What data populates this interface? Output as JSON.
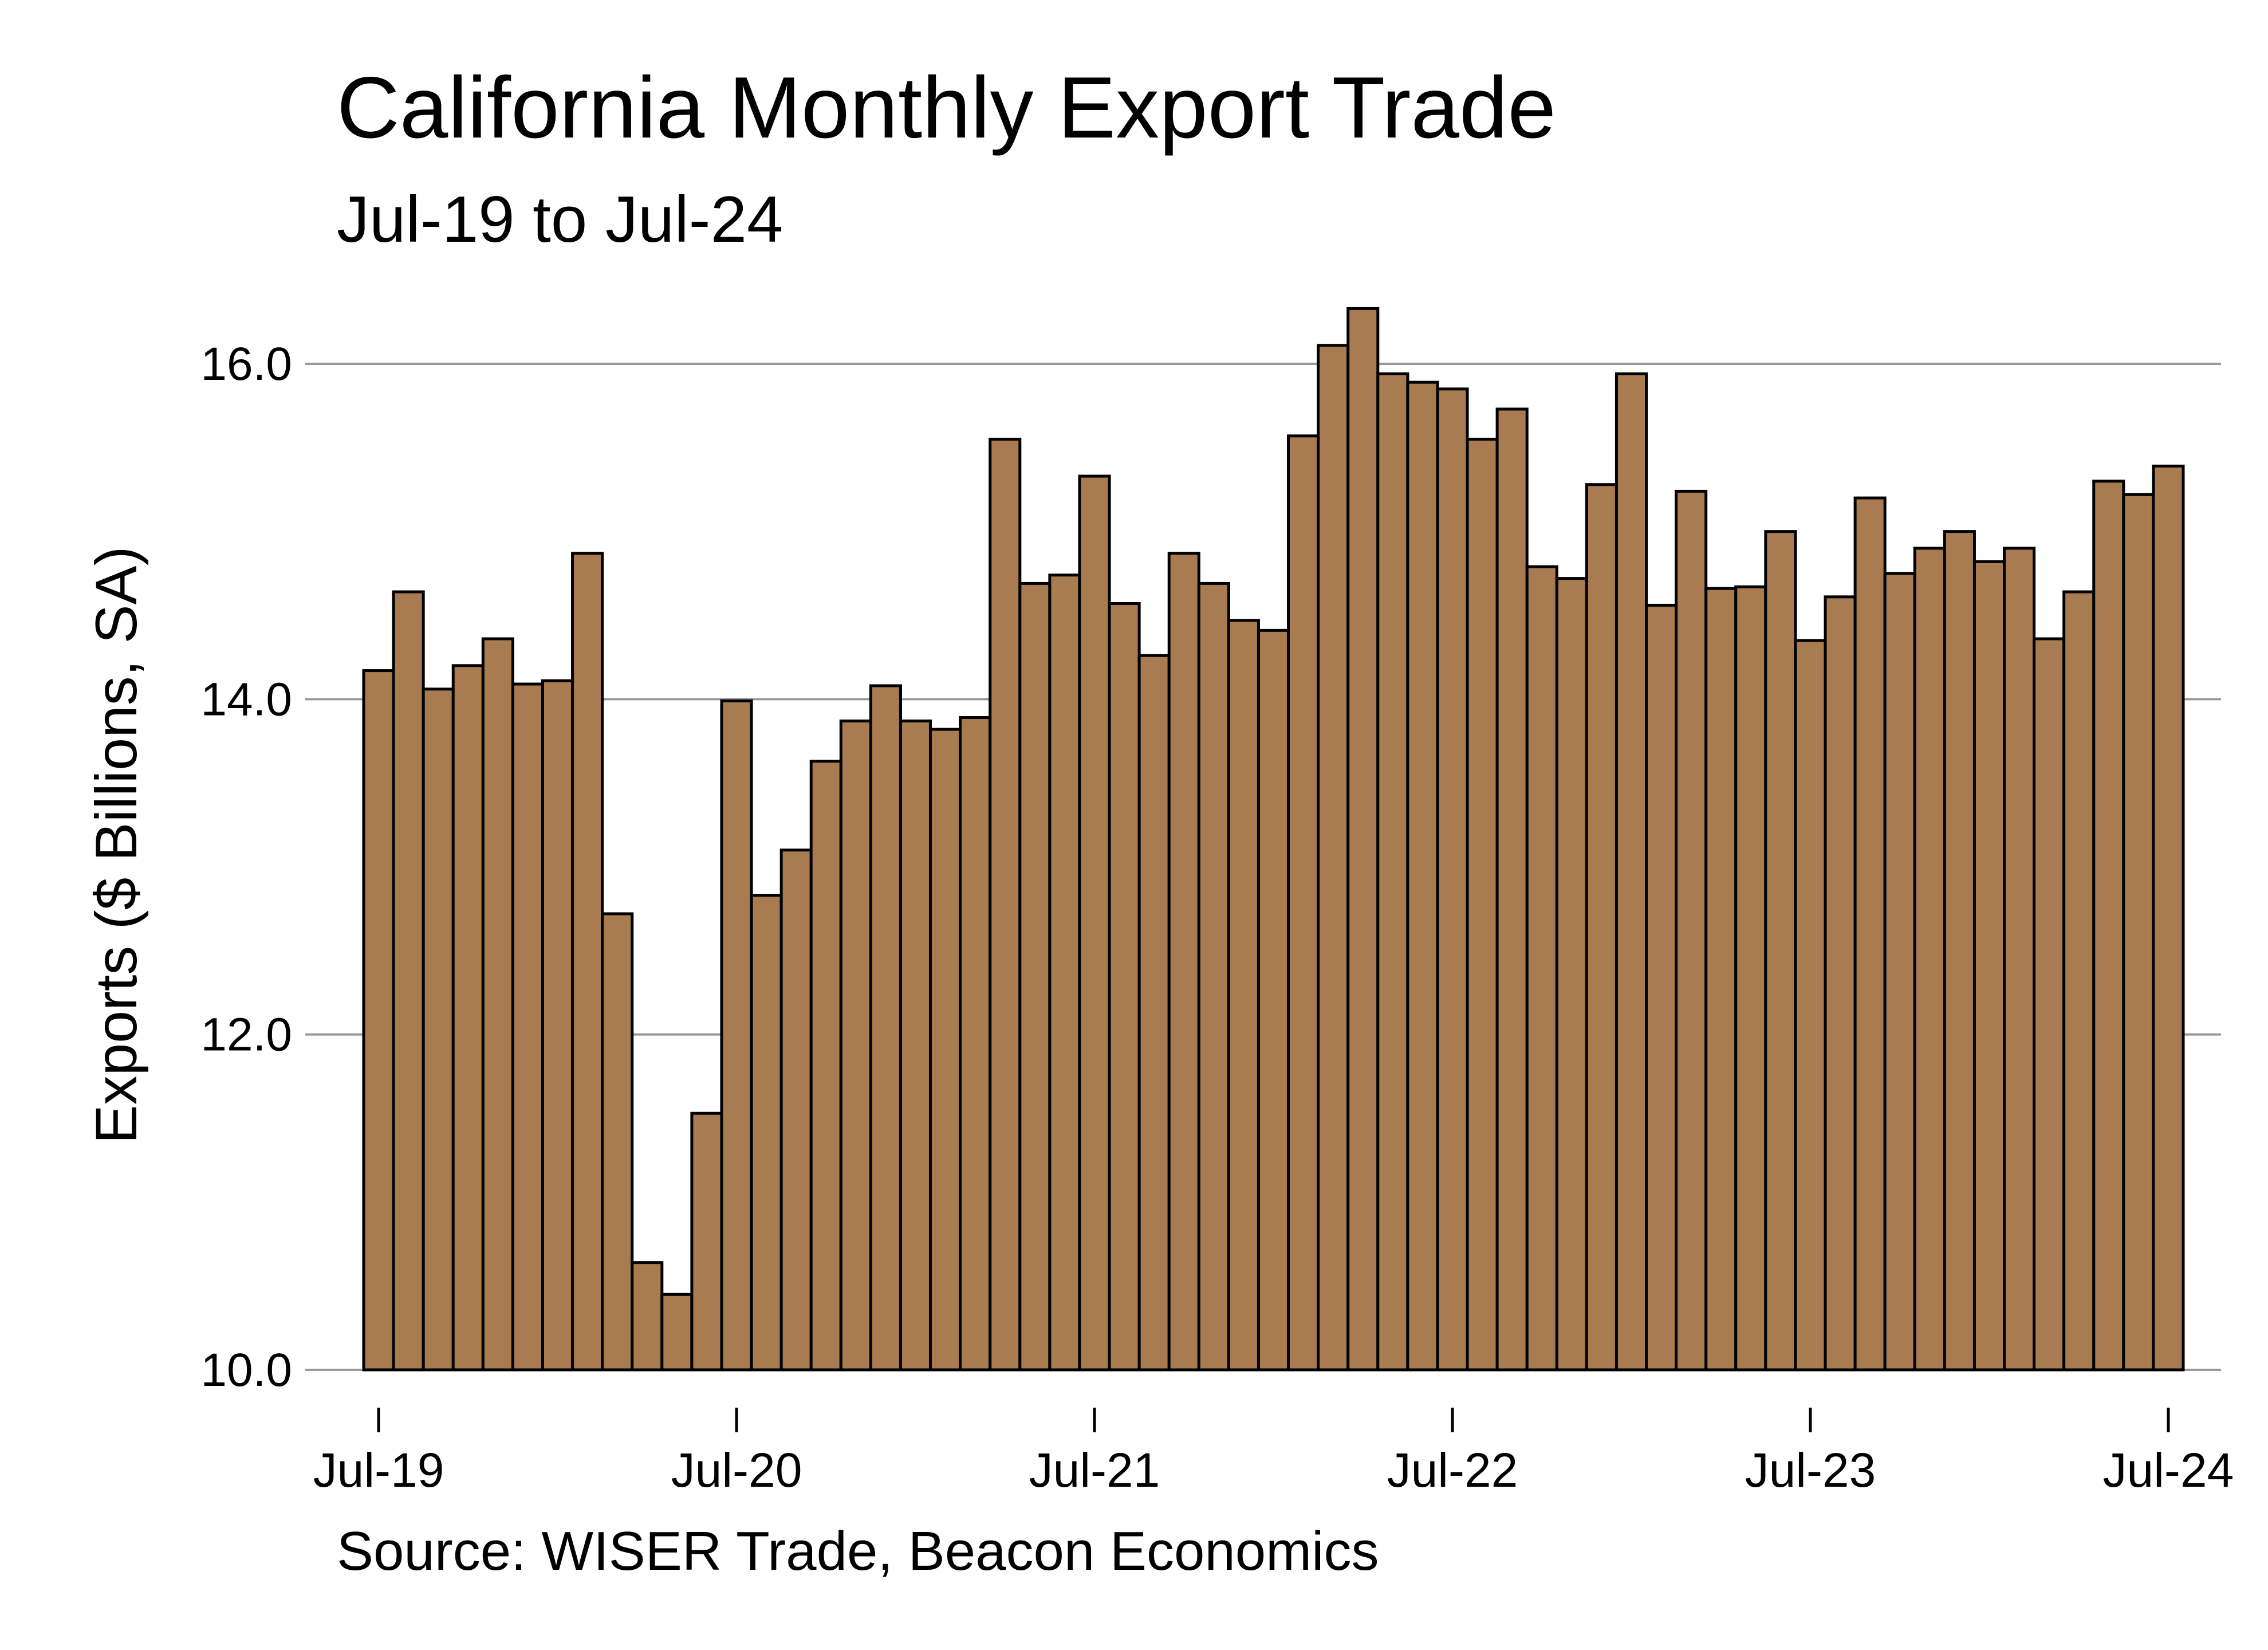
{
  "chart_data": {
    "type": "bar",
    "title": "California Monthly Export Trade",
    "subtitle": "Jul-19 to Jul-24",
    "ylabel": "Exports ($ Billions, SA)",
    "xlabel": "",
    "source": "Source: WISER Trade, Beacon Economics",
    "ylim": [
      10,
      16.5
    ],
    "yticks": [
      "10.0",
      "12.0",
      "14.0",
      "16.0"
    ],
    "ytick_values": [
      10,
      12,
      14,
      16
    ],
    "grid": true,
    "bar_color": "#a87c50",
    "bar_edge_color": "#000000",
    "grid_color": "#999999",
    "xtick_labels": [
      "Jul-19",
      "Jul-20",
      "Jul-21",
      "Jul-22",
      "Jul-23",
      "Jul-24"
    ],
    "xtick_indices": [
      0,
      12,
      24,
      36,
      48,
      60
    ],
    "categories": [
      "Jul-19",
      "Aug-19",
      "Sep-19",
      "Oct-19",
      "Nov-19",
      "Dec-19",
      "Jan-20",
      "Feb-20",
      "Mar-20",
      "Apr-20",
      "May-20",
      "Jun-20",
      "Jul-20",
      "Aug-20",
      "Sep-20",
      "Oct-20",
      "Nov-20",
      "Dec-20",
      "Jan-21",
      "Feb-21",
      "Mar-21",
      "Apr-21",
      "May-21",
      "Jun-21",
      "Jul-21",
      "Aug-21",
      "Sep-21",
      "Oct-21",
      "Nov-21",
      "Dec-21",
      "Jan-22",
      "Feb-22",
      "Mar-22",
      "Apr-22",
      "May-22",
      "Jun-22",
      "Jul-22",
      "Aug-22",
      "Sep-22",
      "Oct-22",
      "Nov-22",
      "Dec-22",
      "Jan-23",
      "Feb-23",
      "Mar-23",
      "Apr-23",
      "May-23",
      "Jun-23",
      "Jul-23",
      "Aug-23",
      "Sep-23",
      "Oct-23",
      "Nov-23",
      "Dec-23",
      "Jan-24",
      "Feb-24",
      "Mar-24",
      "Apr-24",
      "May-24",
      "Jun-24",
      "Jul-24"
    ],
    "values": [
      14.17,
      14.64,
      14.06,
      14.2,
      14.36,
      14.09,
      14.11,
      14.87,
      12.72,
      10.64,
      10.45,
      11.53,
      13.99,
      12.83,
      13.1,
      13.63,
      13.87,
      14.08,
      13.87,
      13.82,
      13.89,
      15.55,
      14.69,
      14.74,
      15.33,
      14.57,
      14.26,
      14.87,
      14.69,
      14.47,
      14.41,
      15.57,
      16.11,
      16.33,
      15.94,
      15.89,
      15.85,
      15.55,
      15.73,
      14.79,
      14.72,
      15.28,
      15.94,
      14.56,
      15.24,
      14.66,
      14.67,
      15.0,
      14.35,
      14.61,
      15.2,
      14.75,
      14.9,
      15.0,
      14.82,
      14.9,
      14.36,
      14.64,
      15.3,
      15.22,
      15.39
    ]
  }
}
